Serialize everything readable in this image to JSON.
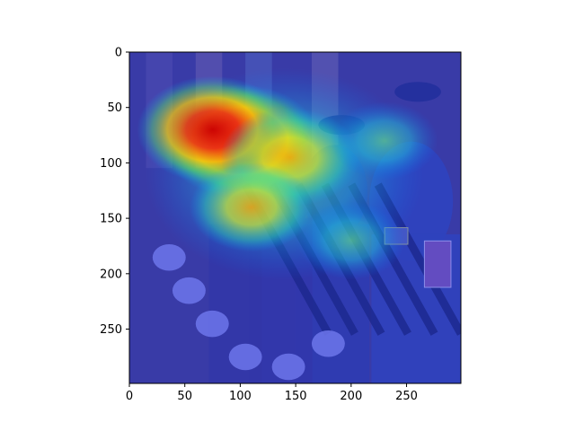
{
  "chart_data": {
    "type": "heatmap",
    "description_visible": "image with attention heatmap overlay",
    "xlim": [
      0,
      299
    ],
    "ylim": [
      299,
      0
    ],
    "x_ticks": [
      0,
      50,
      100,
      150,
      200,
      250
    ],
    "y_ticks": [
      0,
      50,
      100,
      150,
      200,
      250
    ],
    "colormap": "jet",
    "overlay_alpha": 0.5,
    "hotspots": [
      {
        "x": 100,
        "y": 80,
        "intensity": 1.0
      },
      {
        "x": 75,
        "y": 70,
        "intensity": 0.9
      },
      {
        "x": 145,
        "y": 95,
        "intensity": 0.75
      },
      {
        "x": 110,
        "y": 140,
        "intensity": 0.55
      },
      {
        "x": 230,
        "y": 80,
        "intensity": 0.35
      },
      {
        "x": 200,
        "y": 170,
        "intensity": 0.35
      }
    ],
    "title": "",
    "xlabel": "",
    "ylabel": ""
  }
}
